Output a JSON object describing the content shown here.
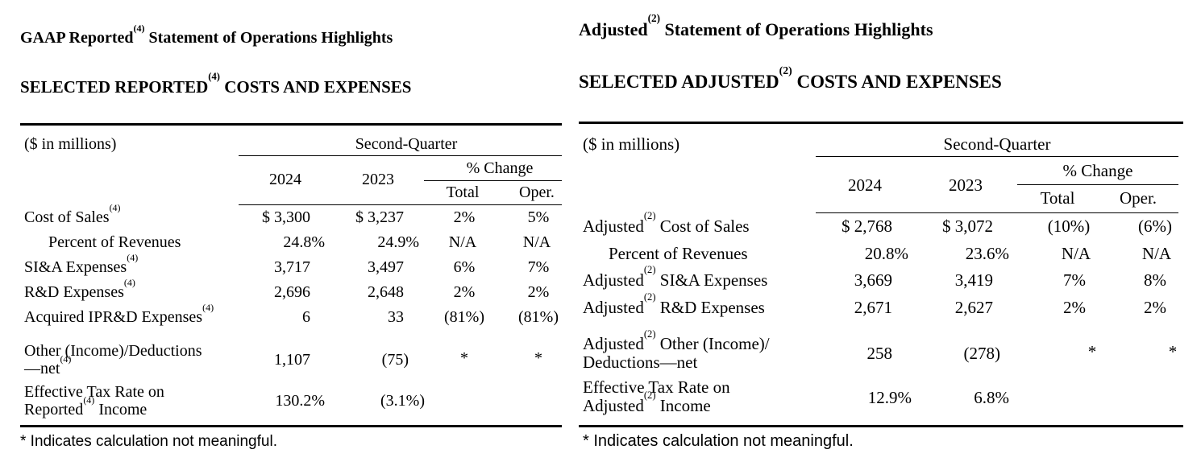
{
  "left": {
    "title_a": "GAAP Reported",
    "title_sup": "(4)",
    "title_b": " Statement of Operations Highlights",
    "heading_a": "SELECTED REPORTED",
    "heading_sup": "(4)",
    "heading_b": " COSTS AND EXPENSES",
    "units": "($ in millions)",
    "period": "Second-Quarter",
    "col_2024": "2024",
    "col_2023": "2023",
    "pct_change": "% Change",
    "col_total": "Total",
    "col_oper": "Oper.",
    "rows": [
      {
        "label": "Cost of Sales",
        "sup": "(4)",
        "y2024": "$ 3,300",
        "y2023": "$ 3,237",
        "total": "2%",
        "oper": "5%"
      },
      {
        "label": "Percent of Revenues",
        "sup": "",
        "y2024": "24.8%",
        "y2023": "24.9%",
        "total": "N/A",
        "oper": "N/A"
      },
      {
        "label": "SI&A Expenses",
        "sup": "(4)",
        "y2024": "3,717",
        "y2023": "3,497",
        "total": "6%",
        "oper": "7%"
      },
      {
        "label": "R&D Expenses",
        "sup": "(4)",
        "y2024": "2,696",
        "y2023": "2,648",
        "total": "2%",
        "oper": "2%"
      },
      {
        "label": "Acquired IPR&D Expenses",
        "sup": "(4)",
        "y2024": "6",
        "y2023": "33",
        "total": "(81%)",
        "oper": "(81%)"
      },
      {
        "label_a": "Other (Income)/Deductions",
        "label_b": "—net",
        "sup": "(4)",
        "y2024": "1,107",
        "y2023": "(75)",
        "total": "*",
        "oper": "*"
      },
      {
        "label_a": "Effective Tax Rate on",
        "label_b": "Reported",
        "sup": "(4)",
        "label_c": " Income",
        "y2024": "130.2%",
        "y2023": "(3.1%)",
        "total": "",
        "oper": ""
      }
    ],
    "footnote": "* Indicates calculation not meaningful."
  },
  "right": {
    "title_a": "Adjusted",
    "title_sup": "(2)",
    "title_b": " Statement of Operations Highlights",
    "heading_a": "SELECTED ADJUSTED",
    "heading_sup": "(2)",
    "heading_b": " COSTS AND EXPENSES",
    "units": "($ in millions)",
    "period": "Second-Quarter",
    "col_2024": "2024",
    "col_2023": "2023",
    "pct_change": "% Change",
    "col_total": "Total",
    "col_oper": "Oper.",
    "rows": [
      {
        "pre": "Adjusted",
        "sup": "(2)",
        "label": " Cost of Sales",
        "y2024": "$ 2,768",
        "y2023": "$ 3,072",
        "total": "(10%)",
        "oper": "(6%)"
      },
      {
        "pre": "",
        "sup": "",
        "label": "Percent of Revenues",
        "y2024": "20.8%",
        "y2023": "23.6%",
        "total": "N/A",
        "oper": "N/A"
      },
      {
        "pre": "Adjusted",
        "sup": "(2)",
        "label": " SI&A Expenses",
        "y2024": "3,669",
        "y2023": "3,419",
        "total": "7%",
        "oper": "8%"
      },
      {
        "pre": "Adjusted",
        "sup": "(2)",
        "label": " R&D Expenses",
        "y2024": "2,671",
        "y2023": "2,627",
        "total": "2%",
        "oper": "2%"
      },
      {
        "pre": "Adjusted",
        "sup": "(2)",
        "label_a": " Other (Income)/",
        "label_b": "Deductions—net",
        "y2024": "258",
        "y2023": "(278)",
        "total": "*",
        "oper": "*"
      },
      {
        "label_a": "Effective Tax Rate on",
        "pre": "Adjusted",
        "sup": "(2)",
        "label_b": " Income",
        "y2024": "12.9%",
        "y2023": "6.8%",
        "total": "",
        "oper": ""
      }
    ],
    "footnote": "* Indicates calculation not meaningful."
  }
}
